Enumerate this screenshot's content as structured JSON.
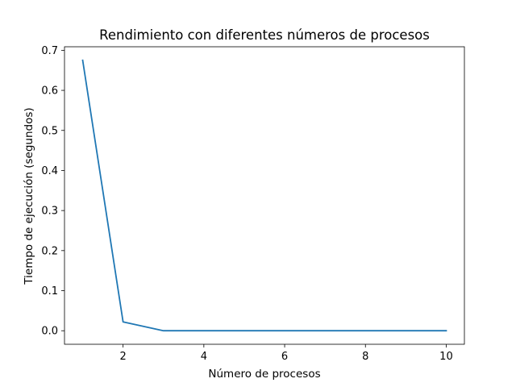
{
  "chart_data": {
    "type": "line",
    "title": "Rendimiento con diferentes números de procesos",
    "xlabel": "Número de procesos",
    "ylabel": "Tiempo de ejecución (segundos)",
    "xlim": [
      0.55,
      10.45
    ],
    "ylim": [
      -0.0338,
      0.7088
    ],
    "x_ticks": [
      2,
      4,
      6,
      8,
      10
    ],
    "y_ticks": [
      0.0,
      0.1,
      0.2,
      0.3,
      0.4,
      0.5,
      0.6,
      0.7
    ],
    "x_tick_labels": [
      "2",
      "4",
      "6",
      "8",
      "10"
    ],
    "y_tick_labels": [
      "0.0",
      "0.1",
      "0.2",
      "0.3",
      "0.4",
      "0.5",
      "0.6",
      "0.7"
    ],
    "grid": false,
    "series": [
      {
        "color": "#1f77b4",
        "x": [
          1,
          2,
          3,
          4,
          5,
          6,
          7,
          8,
          9,
          10
        ],
        "y": [
          0.675,
          0.022,
          0.0,
          0.0,
          0.0,
          0.0,
          0.0,
          0.0,
          0.0,
          0.0
        ]
      }
    ]
  }
}
